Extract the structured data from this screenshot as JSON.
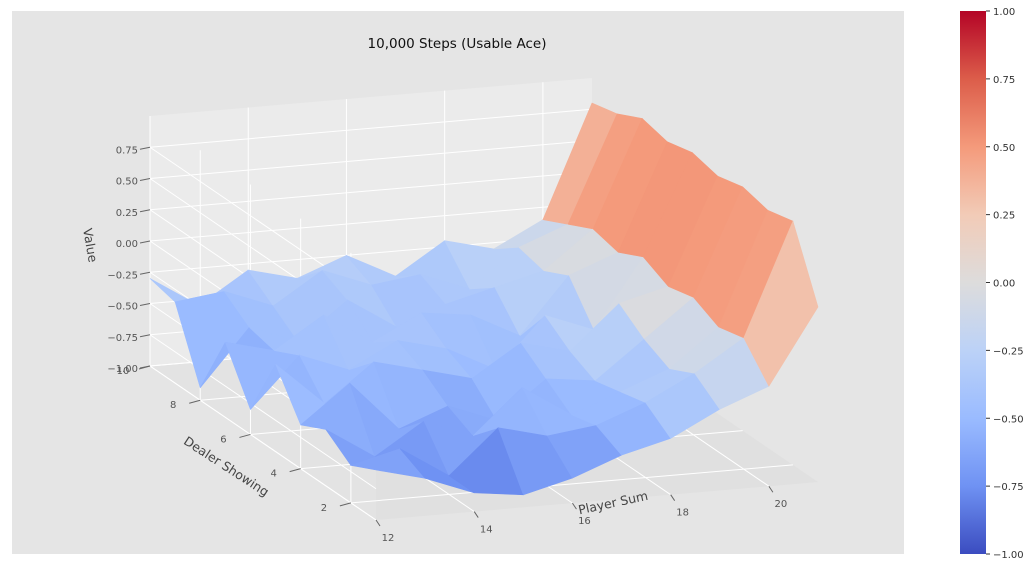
{
  "chart_data": {
    "type": "surface",
    "title": "10,000 Steps (Usable Ace)",
    "xlabel": "Player Sum",
    "ylabel": "Dealer Showing",
    "zlabel": "Value",
    "xlim": [
      12,
      21
    ],
    "ylim": [
      1,
      10
    ],
    "zlim": [
      -1.0,
      1.0
    ],
    "x_ticks": [
      12,
      14,
      16,
      18,
      20
    ],
    "y_ticks": [
      2,
      4,
      6,
      8,
      10
    ],
    "z_ticks": [
      -1.0,
      -0.75,
      -0.5,
      -0.25,
      0.0,
      0.25,
      0.5,
      0.75
    ],
    "z_tick_labels": [
      "−1.00",
      "−0.75",
      "−0.50",
      "−0.25",
      "0.00",
      "0.25",
      "0.50",
      "0.75"
    ],
    "x": [
      12,
      13,
      14,
      15,
      16,
      17,
      18,
      19,
      20,
      21
    ],
    "y": [
      1,
      2,
      3,
      4,
      5,
      6,
      7,
      8,
      9,
      10
    ],
    "z_rows_by_dealer": [
      [
        -0.6,
        -0.7,
        -0.85,
        -0.9,
        -0.8,
        -0.65,
        -0.55,
        -0.35,
        -0.2,
        0.4
      ],
      [
        -0.7,
        -0.6,
        -0.85,
        -0.5,
        -0.6,
        -0.55,
        -0.4,
        -0.2,
        0.05,
        0.95
      ],
      [
        -0.55,
        -0.8,
        -0.55,
        -0.7,
        -0.35,
        -0.6,
        -0.45,
        -0.3,
        0.0,
        0.9
      ],
      [
        -0.65,
        -0.35,
        -0.75,
        -0.6,
        -0.75,
        -0.45,
        -0.5,
        -0.2,
        0.1,
        0.95
      ],
      [
        -0.3,
        -0.65,
        -0.35,
        -0.45,
        -0.55,
        -0.3,
        -0.4,
        -0.05,
        0.05,
        0.9
      ],
      [
        -0.8,
        -0.4,
        -0.55,
        -0.35,
        -0.45,
        -0.65,
        -0.25,
        -0.4,
        0.15,
        0.95
      ],
      [
        -0.4,
        -0.5,
        -0.25,
        -0.5,
        -0.3,
        -0.35,
        -0.55,
        -0.1,
        0.05,
        0.9
      ],
      [
        -0.9,
        -0.45,
        -0.6,
        -0.3,
        -0.55,
        -0.4,
        -0.3,
        -0.2,
        0.1,
        0.95
      ],
      [
        -0.35,
        -0.3,
        -0.45,
        -0.2,
        -0.35,
        -0.3,
        -0.45,
        -0.15,
        0.0,
        0.85
      ],
      [
        -0.3,
        -0.55,
        -0.3,
        -0.4,
        -0.25,
        -0.45,
        -0.2,
        -0.3,
        -0.1,
        0.8
      ]
    ],
    "colormap": "coolwarm",
    "colorbar": {
      "min": -1.0,
      "max": 1.0,
      "ticks": [
        1.0,
        0.75,
        0.5,
        0.25,
        0.0,
        -0.25,
        -0.5,
        -0.75,
        -1.0
      ],
      "tick_labels": [
        "1.00",
        "0.75",
        "0.50",
        "0.25",
        "0.00",
        "−0.25",
        "−0.50",
        "−0.75",
        "−1.00"
      ]
    },
    "grid": true
  },
  "colors": {
    "panel_background": "#e5e5e5",
    "grid_line": "#ffffff",
    "pane_left": "#e3e3e3",
    "pane_back": "#ebebeb",
    "pane_floor": "#e0e0e0"
  }
}
